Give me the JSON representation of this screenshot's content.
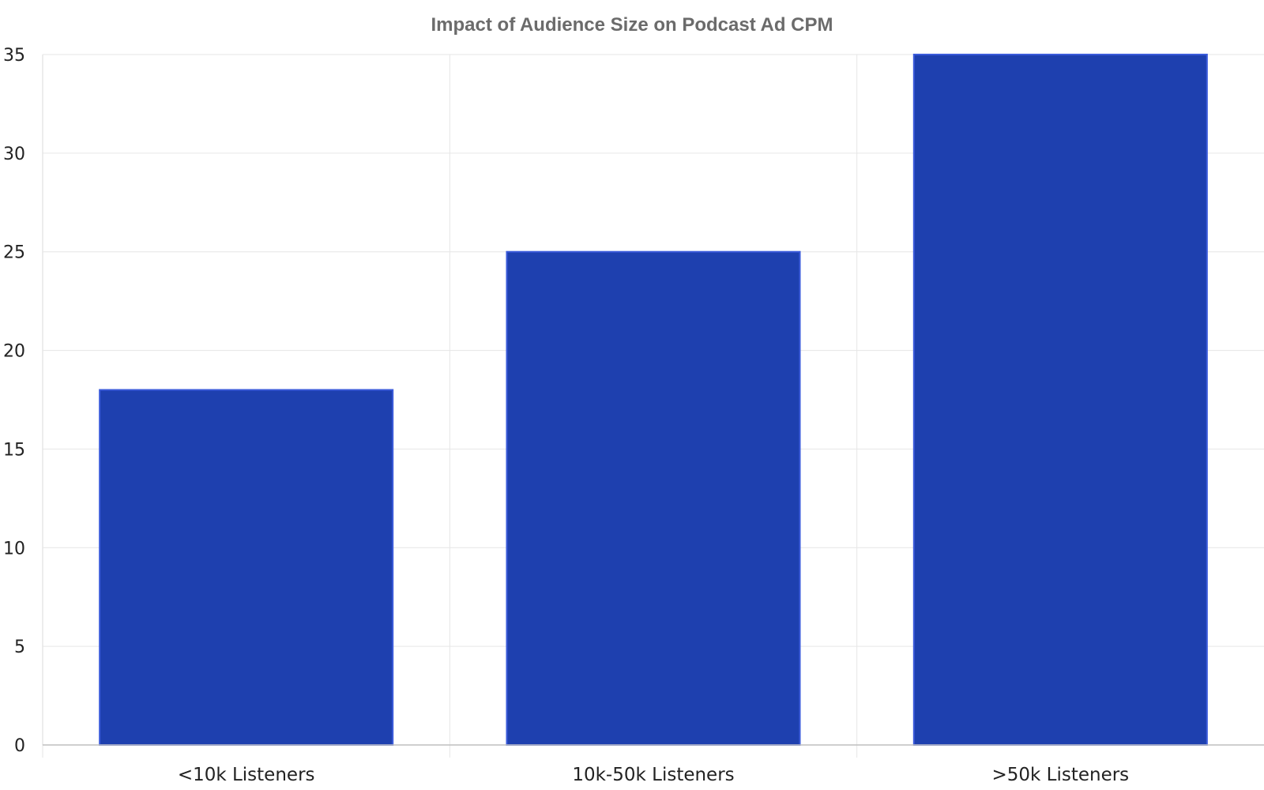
{
  "chart_data": {
    "type": "bar",
    "title": "Impact of Audience Size on Podcast Ad CPM",
    "xlabel": "",
    "ylabel": "",
    "categories": [
      "<10k Listeners",
      "10k-50k Listeners",
      ">50k Listeners"
    ],
    "values": [
      18,
      25,
      35
    ],
    "ylim": [
      0,
      35
    ],
    "yticks": [
      0,
      5,
      10,
      15,
      20,
      25,
      30,
      35
    ],
    "grid": true,
    "bar_color": "#1e40af",
    "bar_edge_color": "#3b5bdb",
    "grid_color": "#e6e6e6",
    "axis_color": "#bfbfbf",
    "title_color": "#6b6b6b",
    "tick_color": "#222222"
  }
}
